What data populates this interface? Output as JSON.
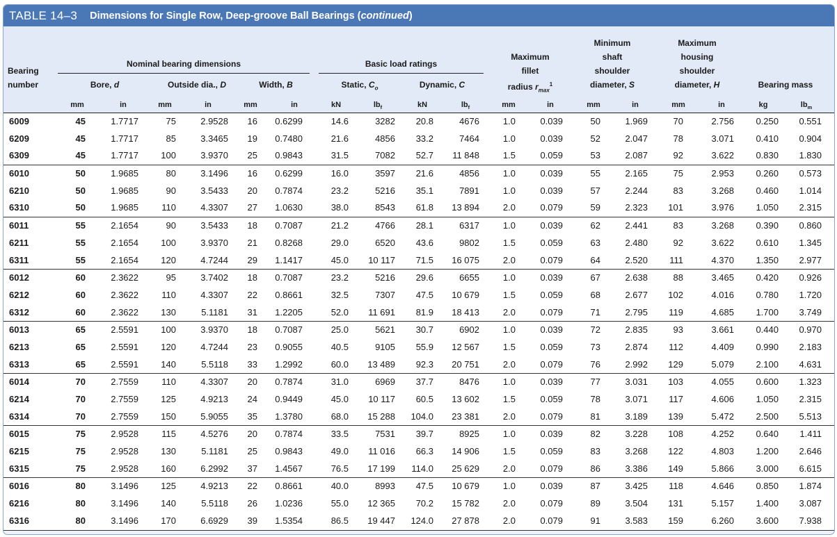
{
  "table_label": "TABLE 14–3",
  "table_caption": "Dimensions for Single Row, Deep-groove Ball Bearings (",
  "table_caption_emph": "continued",
  "table_caption_end": ")",
  "headers": {
    "bearing_number_1": "Bearing",
    "bearing_number_2": "number",
    "nominal": "Nominal bearing dimensions",
    "bore": "Bore, ",
    "bore_sym": "d",
    "outside": "Outside dia., ",
    "outside_sym": "D",
    "width": "Width, ",
    "width_sym": "B",
    "basic_load": "Basic load ratings",
    "static": "Static, ",
    "static_sym": "C",
    "static_sub": "o",
    "dynamic": "Dynamic, ",
    "dynamic_sym": "C",
    "fillet_1": "Maximum",
    "fillet_2": "fillet",
    "fillet_3": "radius ",
    "fillet_sym": "r",
    "fillet_sub": "max",
    "fillet_sup": "1",
    "shaft_1": "Minimum",
    "shaft_2": "shaft",
    "shaft_3": "shoulder",
    "shaft_4": "diameter, ",
    "shaft_sym": "S",
    "housing_1": "Maximum",
    "housing_2": "housing",
    "housing_3": "shoulder",
    "housing_4": "diameter, ",
    "housing_sym": "H",
    "mass": "Bearing mass"
  },
  "units": [
    {
      "t": "mm"
    },
    {
      "t": "in"
    },
    {
      "t": "mm"
    },
    {
      "t": "in"
    },
    {
      "t": "mm"
    },
    {
      "t": "in"
    },
    {
      "t": "kN"
    },
    {
      "t": "lb",
      "s": "f"
    },
    {
      "t": "kN"
    },
    {
      "t": "lb",
      "s": "f"
    },
    {
      "t": "mm"
    },
    {
      "t": "in"
    },
    {
      "t": "mm"
    },
    {
      "t": "in"
    },
    {
      "t": "mm"
    },
    {
      "t": "in"
    },
    {
      "t": "kg"
    },
    {
      "t": "lb",
      "s": "m"
    }
  ],
  "rows": [
    [
      "6009",
      "45",
      "1.7717",
      "75",
      "2.9528",
      "16",
      "0.6299",
      "14.6",
      "3282",
      "20.8",
      "4676",
      "1.0",
      "0.039",
      "50",
      "1.969",
      "70",
      "2.756",
      "0.250",
      "0.551"
    ],
    [
      "6209",
      "45",
      "1.7717",
      "85",
      "3.3465",
      "19",
      "0.7480",
      "21.6",
      "4856",
      "33.2",
      "7464",
      "1.0",
      "0.039",
      "52",
      "2.047",
      "78",
      "3.071",
      "0.410",
      "0.904"
    ],
    [
      "6309",
      "45",
      "1.7717",
      "100",
      "3.9370",
      "25",
      "0.9843",
      "31.5",
      "7082",
      "52.7",
      "11 848",
      "1.5",
      "0.059",
      "53",
      "2.087",
      "92",
      "3.622",
      "0.830",
      "1.830"
    ],
    [
      "6010",
      "50",
      "1.9685",
      "80",
      "3.1496",
      "16",
      "0.6299",
      "16.0",
      "3597",
      "21.6",
      "4856",
      "1.0",
      "0.039",
      "55",
      "2.165",
      "75",
      "2.953",
      "0.260",
      "0.573"
    ],
    [
      "6210",
      "50",
      "1.9685",
      "90",
      "3.5433",
      "20",
      "0.7874",
      "23.2",
      "5216",
      "35.1",
      "7891",
      "1.0",
      "0.039",
      "57",
      "2.244",
      "83",
      "3.268",
      "0.460",
      "1.014"
    ],
    [
      "6310",
      "50",
      "1.9685",
      "110",
      "4.3307",
      "27",
      "1.0630",
      "38.0",
      "8543",
      "61.8",
      "13 894",
      "2.0",
      "0.079",
      "59",
      "2.323",
      "101",
      "3.976",
      "1.050",
      "2.315"
    ],
    [
      "6011",
      "55",
      "2.1654",
      "90",
      "3.5433",
      "18",
      "0.7087",
      "21.2",
      "4766",
      "28.1",
      "6317",
      "1.0",
      "0.039",
      "62",
      "2.441",
      "83",
      "3.268",
      "0.390",
      "0.860"
    ],
    [
      "6211",
      "55",
      "2.1654",
      "100",
      "3.9370",
      "21",
      "0.8268",
      "29.0",
      "6520",
      "43.6",
      "9802",
      "1.5",
      "0.059",
      "63",
      "2.480",
      "92",
      "3.622",
      "0.610",
      "1.345"
    ],
    [
      "6311",
      "55",
      "2.1654",
      "120",
      "4.7244",
      "29",
      "1.1417",
      "45.0",
      "10 117",
      "71.5",
      "16 075",
      "2.0",
      "0.079",
      "64",
      "2.520",
      "111",
      "4.370",
      "1.350",
      "2.977"
    ],
    [
      "6012",
      "60",
      "2.3622",
      "95",
      "3.7402",
      "18",
      "0.7087",
      "23.2",
      "5216",
      "29.6",
      "6655",
      "1.0",
      "0.039",
      "67",
      "2.638",
      "88",
      "3.465",
      "0.420",
      "0.926"
    ],
    [
      "6212",
      "60",
      "2.3622",
      "110",
      "4.3307",
      "22",
      "0.8661",
      "32.5",
      "7307",
      "47.5",
      "10 679",
      "1.5",
      "0.059",
      "68",
      "2.677",
      "102",
      "4.016",
      "0.780",
      "1.720"
    ],
    [
      "6312",
      "60",
      "2.3622",
      "130",
      "5.1181",
      "31",
      "1.2205",
      "52.0",
      "11 691",
      "81.9",
      "18 413",
      "2.0",
      "0.079",
      "71",
      "2.795",
      "119",
      "4.685",
      "1.700",
      "3.749"
    ],
    [
      "6013",
      "65",
      "2.5591",
      "100",
      "3.9370",
      "18",
      "0.7087",
      "25.0",
      "5621",
      "30.7",
      "6902",
      "1.0",
      "0.039",
      "72",
      "2.835",
      "93",
      "3.661",
      "0.440",
      "0.970"
    ],
    [
      "6213",
      "65",
      "2.5591",
      "120",
      "4.7244",
      "23",
      "0.9055",
      "40.5",
      "9105",
      "55.9",
      "12 567",
      "1.5",
      "0.059",
      "73",
      "2.874",
      "112",
      "4.409",
      "0.990",
      "2.183"
    ],
    [
      "6313",
      "65",
      "2.5591",
      "140",
      "5.5118",
      "33",
      "1.2992",
      "60.0",
      "13 489",
      "92.3",
      "20 751",
      "2.0",
      "0.079",
      "76",
      "2.992",
      "129",
      "5.079",
      "2.100",
      "4.631"
    ],
    [
      "6014",
      "70",
      "2.7559",
      "110",
      "4.3307",
      "20",
      "0.7874",
      "31.0",
      "6969",
      "37.7",
      "8476",
      "1.0",
      "0.039",
      "77",
      "3.031",
      "103",
      "4.055",
      "0.600",
      "1.323"
    ],
    [
      "6214",
      "70",
      "2.7559",
      "125",
      "4.9213",
      "24",
      "0.9449",
      "45.0",
      "10 117",
      "60.5",
      "13 602",
      "1.5",
      "0.059",
      "78",
      "3.071",
      "117",
      "4.606",
      "1.050",
      "2.315"
    ],
    [
      "6314",
      "70",
      "2.7559",
      "150",
      "5.9055",
      "35",
      "1.3780",
      "68.0",
      "15 288",
      "104.0",
      "23 381",
      "2.0",
      "0.079",
      "81",
      "3.189",
      "139",
      "5.472",
      "2.500",
      "5.513"
    ],
    [
      "6015",
      "75",
      "2.9528",
      "115",
      "4.5276",
      "20",
      "0.7874",
      "33.5",
      "7531",
      "39.7",
      "8925",
      "1.0",
      "0.039",
      "82",
      "3.228",
      "108",
      "4.252",
      "0.640",
      "1.411"
    ],
    [
      "6215",
      "75",
      "2.9528",
      "130",
      "5.1181",
      "25",
      "0.9843",
      "49.0",
      "11 016",
      "66.3",
      "14 906",
      "1.5",
      "0.059",
      "83",
      "3.268",
      "122",
      "4.803",
      "1.200",
      "2.646"
    ],
    [
      "6315",
      "75",
      "2.9528",
      "160",
      "6.2992",
      "37",
      "1.4567",
      "76.5",
      "17 199",
      "114.0",
      "25 629",
      "2.0",
      "0.079",
      "86",
      "3.386",
      "149",
      "5.866",
      "3.000",
      "6.615"
    ],
    [
      "6016",
      "80",
      "3.1496",
      "125",
      "4.9213",
      "22",
      "0.8661",
      "40.0",
      "8993",
      "47.5",
      "10 679",
      "1.0",
      "0.039",
      "87",
      "3.425",
      "118",
      "4.646",
      "0.850",
      "1.874"
    ],
    [
      "6216",
      "80",
      "3.1496",
      "140",
      "5.5118",
      "26",
      "1.0236",
      "55.0",
      "12 365",
      "70.2",
      "15 782",
      "2.0",
      "0.079",
      "89",
      "3.504",
      "131",
      "5.157",
      "1.400",
      "3.087"
    ],
    [
      "6316",
      "80",
      "3.1496",
      "170",
      "6.6929",
      "39",
      "1.5354",
      "86.5",
      "19 447",
      "124.0",
      "27 878",
      "2.0",
      "0.079",
      "91",
      "3.583",
      "159",
      "6.260",
      "3.600",
      "7.938"
    ]
  ]
}
